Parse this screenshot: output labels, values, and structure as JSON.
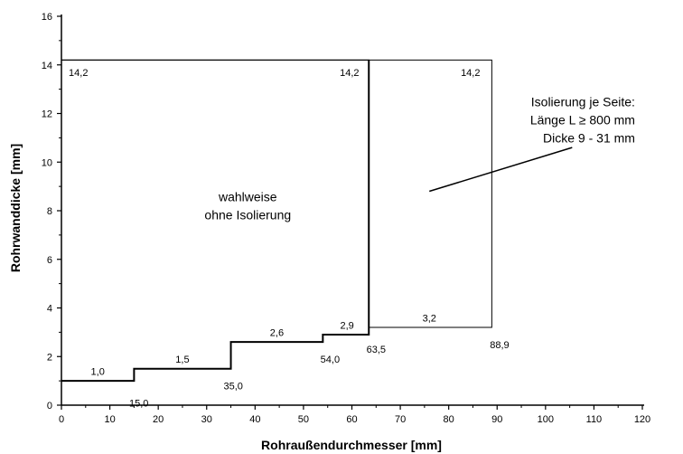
{
  "chart_data": {
    "type": "line",
    "xlabel": "Rohraußendurchmesser [mm]",
    "ylabel": "Rohrwanddicke [mm]",
    "xlim": [
      0,
      120
    ],
    "ylim": [
      0,
      16
    ],
    "x_ticks": [
      0,
      10,
      20,
      30,
      40,
      50,
      60,
      70,
      80,
      90,
      100,
      110,
      120
    ],
    "y_ticks": [
      0,
      2,
      4,
      6,
      8,
      10,
      12,
      14,
      16
    ],
    "grid": false,
    "series": [
      {
        "x": [
          0,
          15,
          15,
          35,
          35,
          54,
          54,
          63.5,
          63.5,
          0
        ],
        "y": [
          1.0,
          1.0,
          1.5,
          1.5,
          2.6,
          2.6,
          2.9,
          2.9,
          14.2,
          14.2
        ]
      },
      {
        "x": [
          63.5,
          63.5,
          88.9,
          88.9,
          63.5
        ],
        "y": [
          3.2,
          14.2,
          14.2,
          3.2,
          3.2
        ]
      }
    ],
    "point_labels": [
      {
        "text": "14,2",
        "x": 1.5,
        "y": 13.7,
        "anchor": "start"
      },
      {
        "text": "14,2",
        "x": 61.5,
        "y": 13.7,
        "anchor": "end"
      },
      {
        "text": "14,2",
        "x": 86.5,
        "y": 13.7,
        "anchor": "end"
      },
      {
        "text": "1,0",
        "x": 7.5,
        "y": 1.4,
        "anchor": "middle"
      },
      {
        "text": "1,5",
        "x": 25.0,
        "y": 1.9,
        "anchor": "middle"
      },
      {
        "text": "2,6",
        "x": 44.5,
        "y": 3.0,
        "anchor": "middle"
      },
      {
        "text": "2,9",
        "x": 59.0,
        "y": 3.3,
        "anchor": "middle"
      },
      {
        "text": "3,2",
        "x": 76.0,
        "y": 3.6,
        "anchor": "middle"
      },
      {
        "text": "15,0",
        "x": 16.0,
        "y": 0.1,
        "anchor": "middle"
      },
      {
        "text": "35,0",
        "x": 35.5,
        "y": 0.8,
        "anchor": "middle"
      },
      {
        "text": "54,0",
        "x": 55.5,
        "y": 1.9,
        "anchor": "middle"
      },
      {
        "text": "63,5",
        "x": 65.0,
        "y": 2.3,
        "anchor": "middle"
      },
      {
        "text": "88,9",
        "x": 90.5,
        "y": 2.5,
        "anchor": "middle"
      }
    ],
    "annotations": [
      {
        "lines": [
          "wahlweise",
          "ohne Isolierung"
        ],
        "x": 38.5,
        "y": 8.4,
        "anchor": "middle"
      },
      {
        "lines": [
          "Isolierung je Seite:",
          "Länge L ≥ 800 mm",
          "Dicke 9 - 31 mm"
        ],
        "x": 118.5,
        "y": 12.3,
        "anchor": "end"
      }
    ],
    "leader_line": {
      "x": [
        76,
        105.5
      ],
      "y": [
        8.8,
        10.6
      ]
    }
  }
}
